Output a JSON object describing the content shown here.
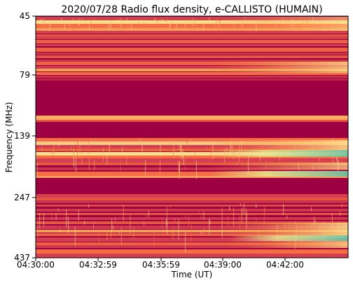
{
  "chart_data": {
    "type": "heatmap",
    "title": "2020/07/28  Radio flux density, e-CALLISTO (HUMAIN)",
    "xlabel": "Time (UT)",
    "ylabel": "Frequency (MHz)",
    "x_ticks": [
      "04:30:00",
      "04:32:59",
      "04:35:59",
      "04:39:00",
      "04:42:00"
    ],
    "y_ticks": [
      "45",
      "79",
      "139",
      "247",
      "437"
    ],
    "y_scale": "log",
    "y_inverted": true,
    "colormap": "spectral",
    "colors": {
      "low": "#9e0142",
      "mid_low": "#d53e4f",
      "mid": "#f46d43",
      "mid_high": "#fdae61",
      "high": "#fee08b",
      "very_high": "#e6f598",
      "peak": "#66c2a5"
    }
  }
}
